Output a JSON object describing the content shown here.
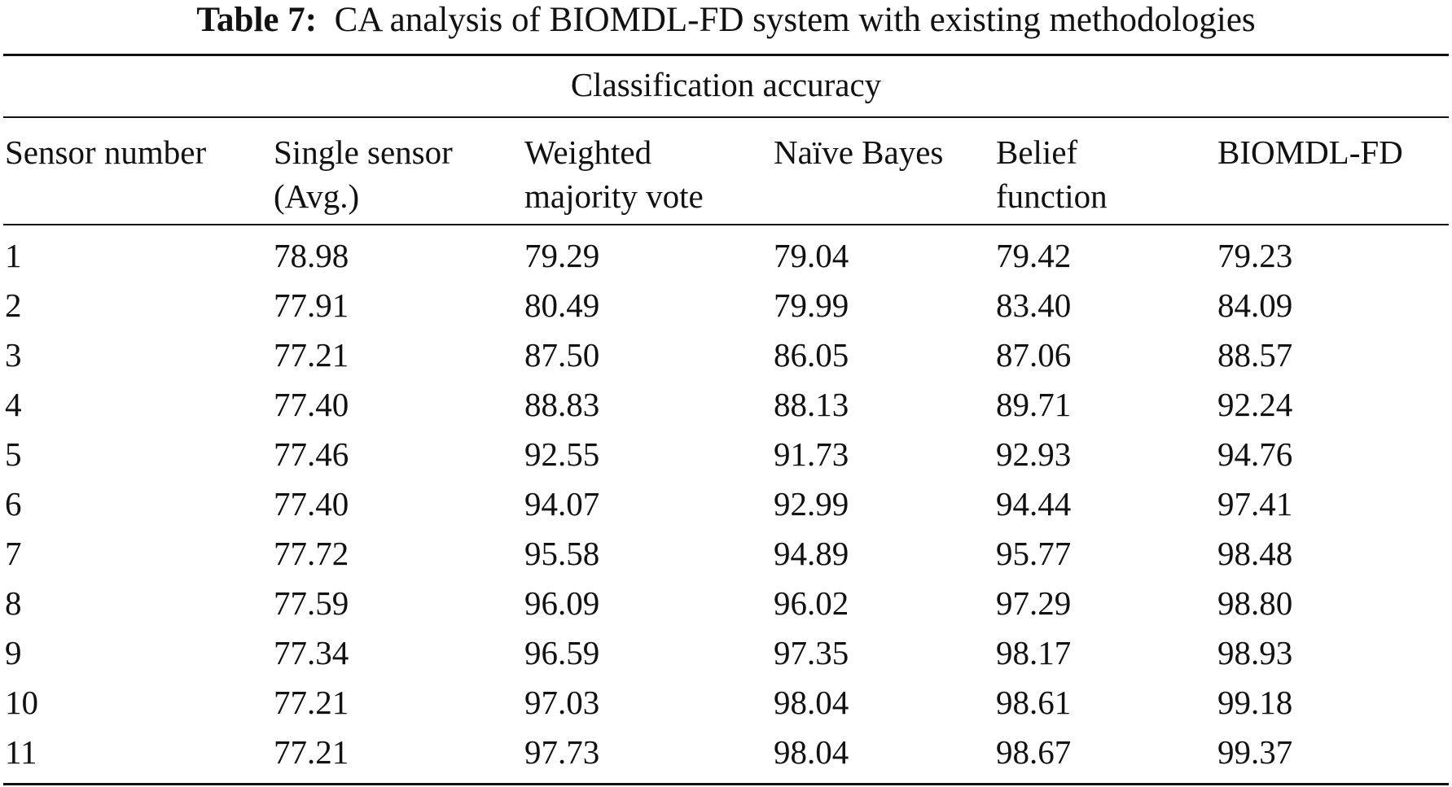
{
  "caption": {
    "label": "Table 7:",
    "text": "CA analysis of BIOMDL-FD system with existing methodologies"
  },
  "table": {
    "group_header": "Classification accuracy",
    "columns": [
      {
        "line1": "Sensor number",
        "line2": ""
      },
      {
        "line1": "Single sensor",
        "line2": "(Avg.)"
      },
      {
        "line1": "Weighted",
        "line2": "majority vote"
      },
      {
        "line1": "Naïve Bayes",
        "line2": ""
      },
      {
        "line1": "Belief",
        "line2": "function"
      },
      {
        "line1": "BIOMDL-FD",
        "line2": ""
      }
    ],
    "rows": [
      [
        "1",
        "78.98",
        "79.29",
        "79.04",
        "79.42",
        "79.23"
      ],
      [
        "2",
        "77.91",
        "80.49",
        "79.99",
        "83.40",
        "84.09"
      ],
      [
        "3",
        "77.21",
        "87.50",
        "86.05",
        "87.06",
        "88.57"
      ],
      [
        "4",
        "77.40",
        "88.83",
        "88.13",
        "89.71",
        "92.24"
      ],
      [
        "5",
        "77.46",
        "92.55",
        "91.73",
        "92.93",
        "94.76"
      ],
      [
        "6",
        "77.40",
        "94.07",
        "92.99",
        "94.44",
        "97.41"
      ],
      [
        "7",
        "77.72",
        "95.58",
        "94.89",
        "95.77",
        "98.48"
      ],
      [
        "8",
        "77.59",
        "96.09",
        "96.02",
        "97.29",
        "98.80"
      ],
      [
        "9",
        "77.34",
        "96.59",
        "97.35",
        "98.17",
        "98.93"
      ],
      [
        "10",
        "77.21",
        "97.03",
        "98.04",
        "98.61",
        "99.18"
      ],
      [
        "11",
        "77.21",
        "97.73",
        "98.04",
        "98.67",
        "99.37"
      ]
    ]
  }
}
